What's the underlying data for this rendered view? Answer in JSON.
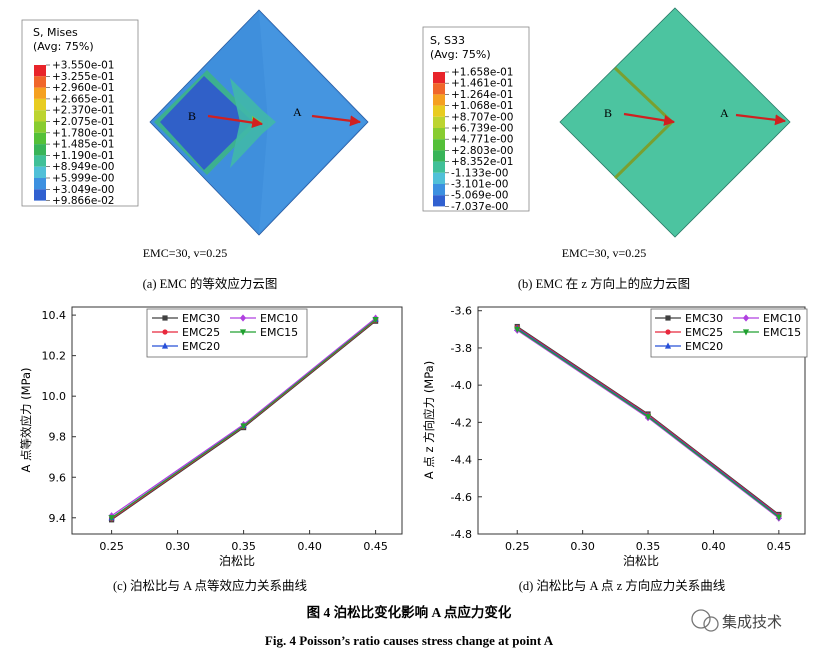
{
  "contour_a": {
    "legend_title": "S, Mises",
    "legend_sub": "(Avg: 75%)",
    "legend_values": [
      "+3.550e-01",
      "+3.255e-01",
      "+2.960e-01",
      "+2.665e-01",
      "+2.370e-01",
      "+2.075e-01",
      "+1.780e-01",
      "+1.485e-01",
      "+1.190e-01",
      "+8.949e-00",
      "+5.999e-00",
      "+3.049e-00",
      "+9.866e-02"
    ],
    "legend_colors": [
      "#e8242a",
      "#f0662a",
      "#f5a020",
      "#e8cc20",
      "#bcd430",
      "#88cc30",
      "#54c038",
      "#38b458",
      "#40c098",
      "#50c0d8",
      "#3c90e0",
      "#3060d0",
      "#2a48b0"
    ],
    "point_b": "B",
    "point_a": "A",
    "params": "EMC=30, v=0.25",
    "caption": "(a) EMC 的等效应力云图"
  },
  "contour_b": {
    "legend_title": "S, S33",
    "legend_sub": "(Avg: 75%)",
    "legend_values": [
      "+1.658e-01",
      "+1.461e-01",
      "+1.264e-01",
      "+1.068e-01",
      "+8.707e-00",
      "+6.739e-00",
      "+4.771e-00",
      "+2.803e-00",
      "+8.352e-01",
      "-1.133e-00",
      "-3.101e-00",
      "-5.069e-00",
      "-7.037e-00"
    ],
    "legend_colors": [
      "#e8242a",
      "#f0662a",
      "#f5a020",
      "#e8cc20",
      "#bcd430",
      "#88cc30",
      "#54c038",
      "#38b458",
      "#40c098",
      "#50c0d8",
      "#3c90e0",
      "#3060d0",
      "#2a48b0"
    ],
    "point_b": "B",
    "point_a": "A",
    "params": "EMC=30, v=0.25",
    "caption": "(b) EMC 在 z 方向上的应力云图"
  },
  "chart_data": [
    {
      "type": "line",
      "ylabel": "A 点等效应力 (MPa)",
      "xlabel": "泊松比",
      "x": [
        0.25,
        0.35,
        0.45
      ],
      "xticks": [
        "0.25",
        "0.30",
        "0.35",
        "0.40",
        "0.45"
      ],
      "yticks": [
        "9.4",
        "9.6",
        "9.8",
        "10.0",
        "10.2",
        "10.4"
      ],
      "xlim": [
        0.22,
        0.47
      ],
      "ylim": [
        9.32,
        10.44
      ],
      "series": [
        {
          "name": "EMC30",
          "values": [
            9.39,
            9.845,
            10.37
          ],
          "color": "#404040",
          "marker": "square"
        },
        {
          "name": "EMC25",
          "values": [
            9.395,
            9.85,
            10.375
          ],
          "color": "#e8283c",
          "marker": "circle"
        },
        {
          "name": "EMC20",
          "values": [
            9.4,
            9.855,
            10.38
          ],
          "color": "#2850d8",
          "marker": "triangle-up"
        },
        {
          "name": "EMC10",
          "values": [
            9.41,
            9.86,
            10.385
          ],
          "color": "#b040e0",
          "marker": "diamond"
        },
        {
          "name": "EMC15",
          "values": [
            9.4,
            9.853,
            10.378
          ],
          "color": "#20a030",
          "marker": "triangle-down"
        }
      ],
      "legend_pos": "top",
      "caption": "(c) 泊松比与 A 点等效应力关系曲线"
    },
    {
      "type": "line",
      "ylabel": "A 点 z 方向应力 (MPa)",
      "xlabel": "泊松比",
      "x": [
        0.25,
        0.35,
        0.45
      ],
      "xticks": [
        "0.25",
        "0.30",
        "0.35",
        "0.40",
        "0.45"
      ],
      "yticks": [
        "-3.6",
        "-3.8",
        "-4.0",
        "-4.2",
        "-4.4",
        "-4.6",
        "-4.8"
      ],
      "xlim": [
        0.22,
        0.47
      ],
      "ylim": [
        -4.8,
        -3.58
      ],
      "series": [
        {
          "name": "EMC30",
          "values": [
            -3.685,
            -4.155,
            -4.695
          ],
          "color": "#404040",
          "marker": "square"
        },
        {
          "name": "EMC25",
          "values": [
            -3.69,
            -4.16,
            -4.7
          ],
          "color": "#e8283c",
          "marker": "circle"
        },
        {
          "name": "EMC20",
          "values": [
            -3.695,
            -4.165,
            -4.705
          ],
          "color": "#2850d8",
          "marker": "triangle-up"
        },
        {
          "name": "EMC10",
          "values": [
            -3.705,
            -4.175,
            -4.715
          ],
          "color": "#b040e0",
          "marker": "diamond"
        },
        {
          "name": "EMC15",
          "values": [
            -3.7,
            -4.17,
            -4.71
          ],
          "color": "#20a030",
          "marker": "triangle-down"
        }
      ],
      "legend_pos": "top",
      "caption": "(d) 泊松比与 A 点 z 方向应力关系曲线"
    }
  ],
  "figure": {
    "title_cn": "图 4 泊松比变化影响 A 点应力变化",
    "title_en": "Fig. 4 Poisson’s ratio causes stress change at point A",
    "watermark": "集成技术"
  }
}
